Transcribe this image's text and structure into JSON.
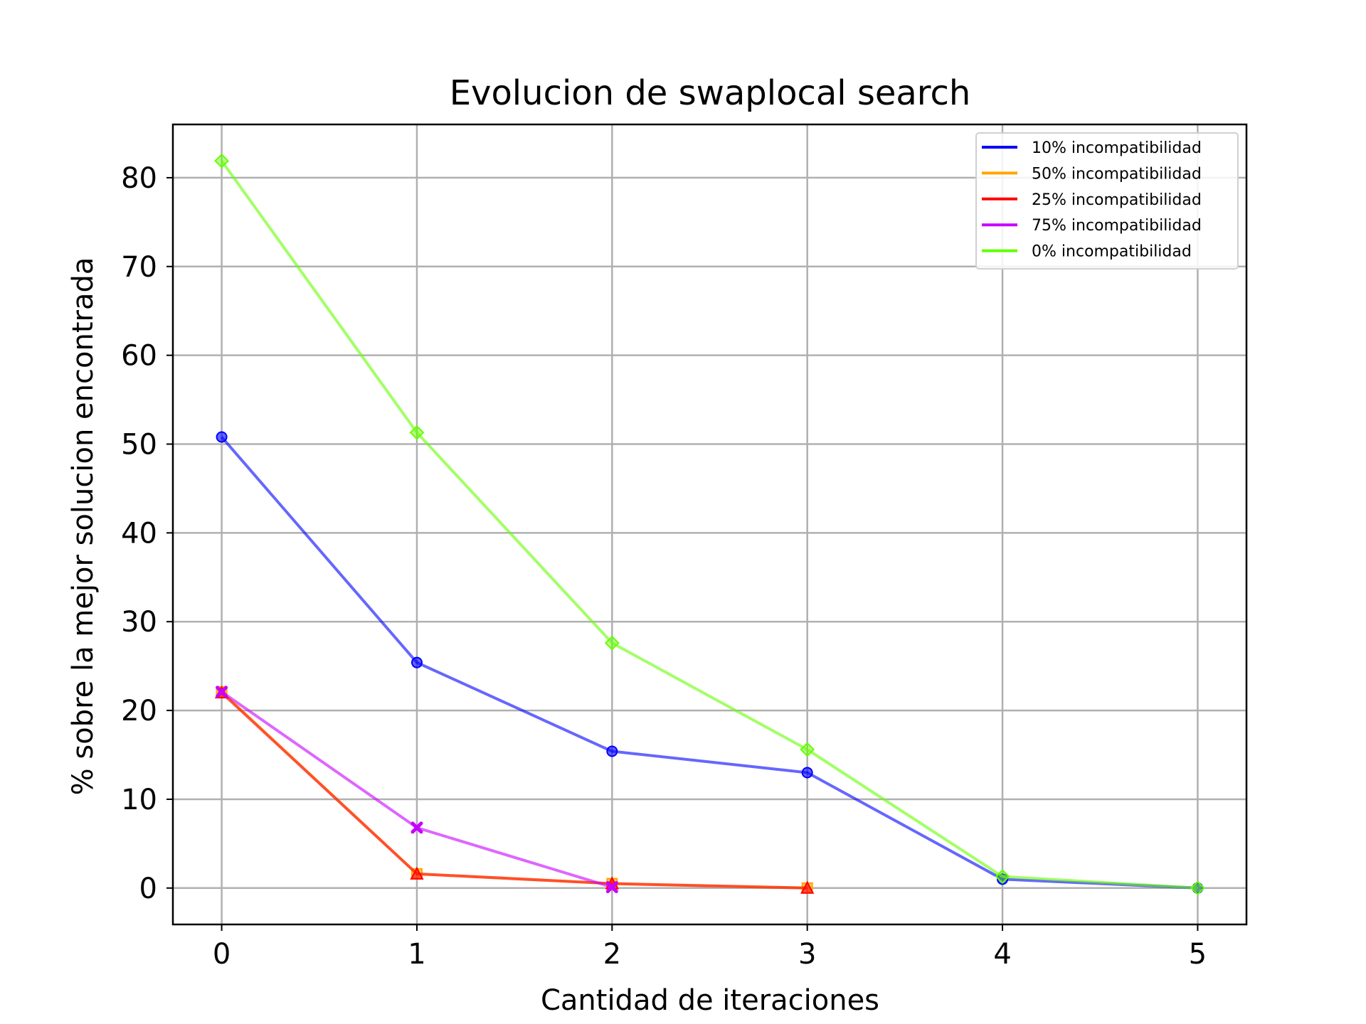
{
  "chart_data": {
    "type": "line",
    "title": "Evolucion de swaplocal search",
    "xlabel": "Cantidad de iteraciones",
    "ylabel": "% sobre la mejor solucion encontrada",
    "xlim": [
      -0.25,
      5.25
    ],
    "ylim": [
      -4.1,
      86
    ],
    "xticks": [
      0,
      1,
      2,
      3,
      4,
      5
    ],
    "yticks": [
      0,
      10,
      20,
      30,
      40,
      50,
      60,
      70,
      80
    ],
    "grid": true,
    "legend_position": "top-right",
    "series": [
      {
        "name": "10% incompatibilidad",
        "color": "#0000ff",
        "marker": "circle",
        "x": [
          0,
          1,
          2,
          3,
          4,
          5
        ],
        "y": [
          50.8,
          25.4,
          15.4,
          13.0,
          1.0,
          0.0
        ]
      },
      {
        "name": "50% incompatibilidad",
        "color": "#ffa500",
        "marker": "square",
        "x": [
          0,
          1,
          2,
          3
        ],
        "y": [
          22.1,
          1.6,
          0.5,
          0.0
        ]
      },
      {
        "name": "25% incompatibilidad",
        "color": "#ff0000",
        "marker": "triangle",
        "x": [
          0,
          1,
          2,
          3
        ],
        "y": [
          22.0,
          1.6,
          0.5,
          0.0
        ]
      },
      {
        "name": "75% incompatibilidad",
        "color": "#c800ff",
        "marker": "x",
        "x": [
          0,
          1,
          2
        ],
        "y": [
          22.1,
          6.8,
          0.1
        ]
      },
      {
        "name": "0% incompatibilidad",
        "color": "#64ff00",
        "marker": "diamond",
        "x": [
          0,
          1,
          2,
          3,
          4,
          5
        ],
        "y": [
          81.9,
          51.3,
          27.6,
          15.6,
          1.3,
          0.0
        ]
      }
    ]
  }
}
